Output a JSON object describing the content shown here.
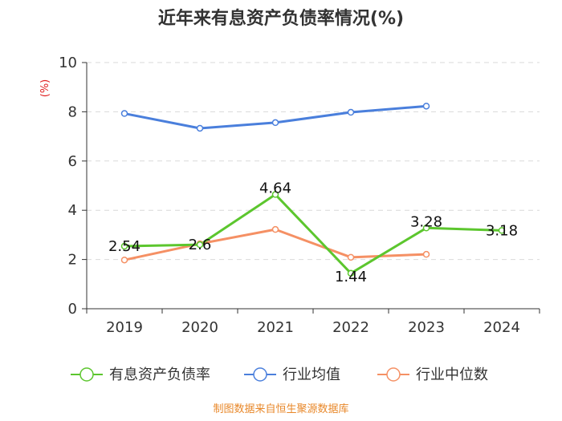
{
  "chart_data": {
    "type": "line",
    "title": "近年来有息资产负债率情况(%)",
    "unit_label": "(%)",
    "categories": [
      "2019",
      "2020",
      "2021",
      "2022",
      "2023",
      "2024"
    ],
    "ylim": [
      0,
      10
    ],
    "yticks": [
      "0",
      "2",
      "4",
      "6",
      "8",
      "10"
    ],
    "grid": true,
    "legend_position": "bottom",
    "series": [
      {
        "name": "有息资产负债率",
        "color": "#5cc62e",
        "values": [
          2.54,
          2.6,
          4.64,
          1.44,
          3.28,
          3.18
        ],
        "labels": [
          "2.54",
          "2.6",
          "4.64",
          "1.44",
          "3.28",
          "3.18"
        ]
      },
      {
        "name": "行业均值",
        "color": "#4a7fdc",
        "values": [
          7.93,
          7.33,
          7.56,
          7.98,
          8.23,
          null
        ]
      },
      {
        "name": "行业中位数",
        "color": "#f59064",
        "values": [
          1.98,
          2.64,
          3.22,
          2.09,
          2.21,
          null
        ]
      }
    ]
  },
  "footer": {
    "source": "制图数据来自恒生聚源数据库"
  }
}
